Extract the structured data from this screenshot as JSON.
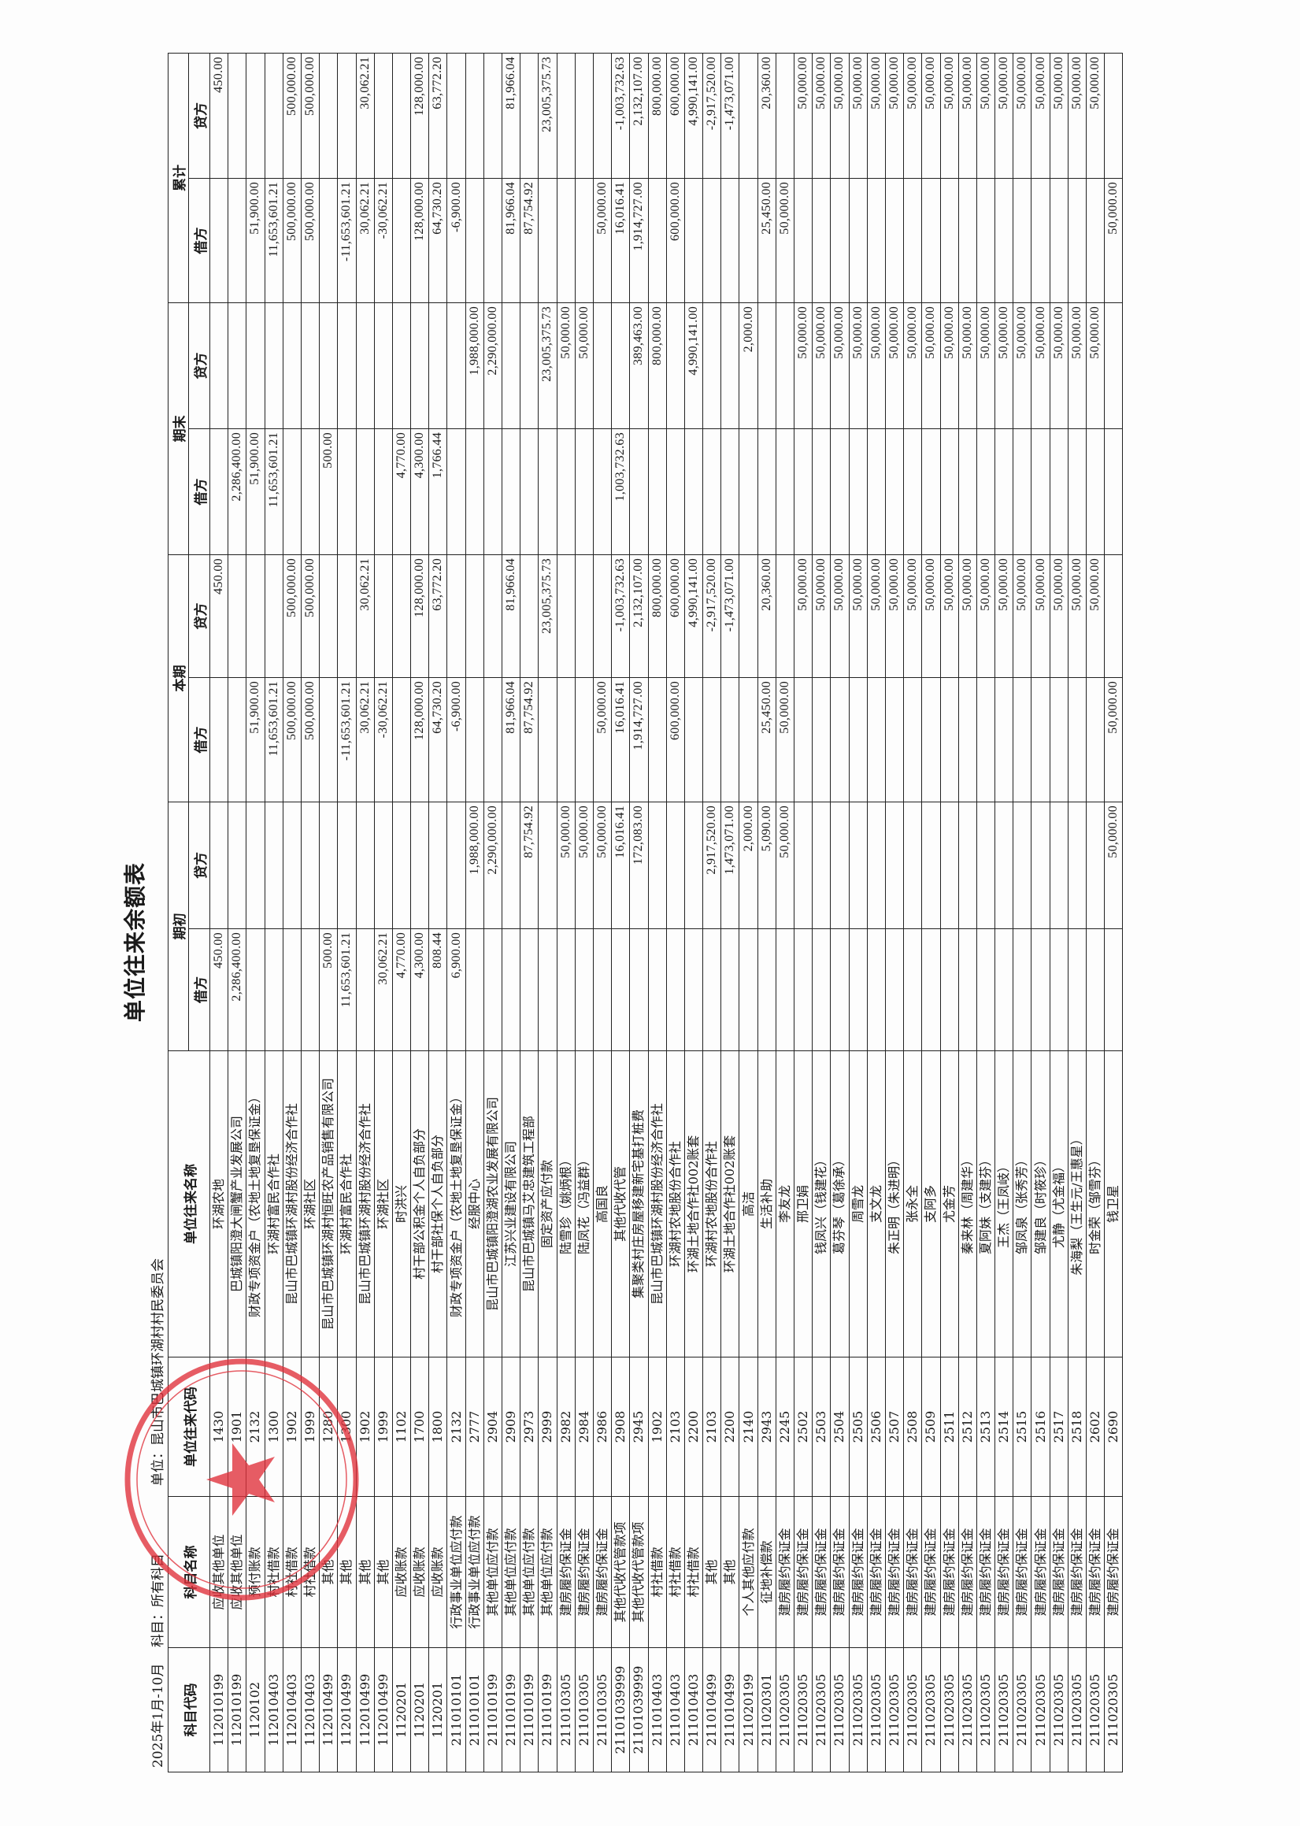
{
  "document": {
    "title": "单位往来余额表",
    "period": "2025年1月-10月",
    "subject": "科目：所有科目",
    "unit": "单位：昆山市巴城镇环湖村村民委员会"
  },
  "stamp": {
    "text": "昆山市巴城镇环湖村村民委员会",
    "color": "#e0303a",
    "icon": "star-icon"
  },
  "table": {
    "headers": {
      "subject_code": "科目代码",
      "subject_name": "科目名称",
      "unit_code": "单位往来代码",
      "unit_name": "单位往来名称",
      "opening": "期初",
      "current": "本期",
      "closing": "期末",
      "cumulative": "累计",
      "debit": "借方",
      "credit": "贷方"
    },
    "rows": [
      [
        "112010199",
        "应收其他单位",
        "1430",
        "环湖农地",
        "450.00",
        "",
        "",
        "450.00",
        "",
        "",
        "",
        "450.00"
      ],
      [
        "112010199",
        "应收其他单位",
        "1901",
        "巴城镇阳澄大闸蟹产业发展公司",
        "2,286,400.00",
        "",
        "",
        "",
        "2,286,400.00",
        "",
        "",
        ""
      ],
      [
        "1120102",
        "预付账款",
        "2132",
        "财政专项资金户（农地土地复垦保证金）",
        "",
        "",
        "51,900.00",
        "",
        "51,900.00",
        "",
        "51,900.00",
        ""
      ],
      [
        "112010403",
        "村社借款",
        "1300",
        "环湖村富民合作社",
        "",
        "",
        "11,653,601.21",
        "",
        "11,653,601.21",
        "",
        "11,653,601.21",
        ""
      ],
      [
        "112010403",
        "村社借款",
        "1902",
        "昆山市巴城镇环湖村股份经济合作社",
        "",
        "",
        "500,000.00",
        "500,000.00",
        "",
        "",
        "500,000.00",
        "500,000.00"
      ],
      [
        "112010403",
        "村社借款",
        "1999",
        "环湖社区",
        "",
        "",
        "500,000.00",
        "500,000.00",
        "",
        "",
        "500,000.00",
        "500,000.00"
      ],
      [
        "112010499",
        "其他",
        "1280",
        "昆山市巴城镇环湖村恒旺农产品销售有限公司",
        "500.00",
        "",
        "",
        "",
        "500.00",
        "",
        "",
        ""
      ],
      [
        "112010499",
        "其他",
        "1300",
        "环湖村富民合作社",
        "11,653,601.21",
        "",
        "-11,653,601.21",
        "",
        "",
        "",
        "-11,653,601.21",
        ""
      ],
      [
        "112010499",
        "其他",
        "1902",
        "昆山市巴城镇环湖村股份经济合作社",
        "",
        "",
        "30,062.21",
        "30,062.21",
        "",
        "",
        "30,062.21",
        "30,062.21"
      ],
      [
        "112010499",
        "其他",
        "1999",
        "环湖社区",
        "30,062.21",
        "",
        "-30,062.21",
        "",
        "",
        "",
        "-30,062.21",
        ""
      ],
      [
        "1120201",
        "应收账款",
        "1102",
        "时洪兴",
        "4,770.00",
        "",
        "",
        "",
        "4,770.00",
        "",
        "",
        ""
      ],
      [
        "1120201",
        "应收账款",
        "1700",
        "村干部公积金个人自负部分",
        "4,300.00",
        "",
        "128,000.00",
        "128,000.00",
        "4,300.00",
        "",
        "128,000.00",
        "128,000.00"
      ],
      [
        "1120201",
        "应收账款",
        "1800",
        "村干部社保个人自负部分",
        "808.44",
        "",
        "64,730.20",
        "63,772.20",
        "1,766.44",
        "",
        "64,730.20",
        "63,772.20"
      ],
      [
        "211010101",
        "行政事业单位应付款",
        "2132",
        "财政专项资金户（农地土地复垦保证金）",
        "6,900.00",
        "",
        "-6,900.00",
        "",
        "",
        "",
        "-6,900.00",
        ""
      ],
      [
        "211010101",
        "行政事业单位应付款",
        "2777",
        "经服中心",
        "",
        "1,988,000.00",
        "",
        "",
        "",
        "1,988,000.00",
        "",
        ""
      ],
      [
        "211010199",
        "其他单位应付款",
        "2904",
        "昆山市巴城镇阳澄湖农业发展有限公司",
        "",
        "2,290,000.00",
        "",
        "",
        "",
        "2,290,000.00",
        "",
        ""
      ],
      [
        "211010199",
        "其他单位应付款",
        "2909",
        "江苏兴业建设有限公司",
        "",
        "",
        "81,966.04",
        "81,966.04",
        "",
        "",
        "81,966.04",
        "81,966.04"
      ],
      [
        "211010199",
        "其他单位应付款",
        "2973",
        "昆山市巴城镇马艾忠建筑工程部",
        "",
        "87,754.92",
        "87,754.92",
        "",
        "",
        "",
        "87,754.92",
        ""
      ],
      [
        "211010199",
        "其他单位应付款",
        "2999",
        "固定资产应付款",
        "",
        "",
        "",
        "23,005,375.73",
        "",
        "23,005,375.73",
        "",
        "23,005,375.73"
      ],
      [
        "211010305",
        "建房履约保证金",
        "2982",
        "陆雪珍（姚炳根）",
        "",
        "50,000.00",
        "",
        "",
        "",
        "50,000.00",
        "",
        ""
      ],
      [
        "211010305",
        "建房履约保证金",
        "2984",
        "陆凤花（冯益群）",
        "",
        "50,000.00",
        "",
        "",
        "",
        "50,000.00",
        "",
        ""
      ],
      [
        "211010305",
        "建房履约保证金",
        "2986",
        "高国良",
        "",
        "50,000.00",
        "50,000.00",
        "",
        "",
        "",
        "50,000.00",
        ""
      ],
      [
        "21101039999",
        "其他代收代管款项",
        "2908",
        "其他代收代管",
        "",
        "16,016.41",
        "16,016.41",
        "-1,003,732.63",
        "1,003,732.63",
        "",
        "16,016.41",
        "-1,003,732.63"
      ],
      [
        "21101039999",
        "其他代收代管款项",
        "2945",
        "集聚类村庄房屋移建新宅基打桩费",
        "",
        "172,083.00",
        "1,914,727.00",
        "2,132,107.00",
        "",
        "389,463.00",
        "1,914,727.00",
        "2,132,107.00"
      ],
      [
        "211010403",
        "村社借款",
        "1902",
        "昆山市巴城镇环湖村股份经济合作社",
        "",
        "",
        "",
        "800,000.00",
        "",
        "800,000.00",
        "",
        "800,000.00"
      ],
      [
        "211010403",
        "村社借款",
        "2103",
        "环湖村农地股份合作社",
        "",
        "",
        "600,000.00",
        "600,000.00",
        "",
        "",
        "600,000.00",
        "600,000.00"
      ],
      [
        "211010403",
        "村社借款",
        "2200",
        "环湖土地合作社002账套",
        "",
        "",
        "",
        "4,990,141.00",
        "",
        "4,990,141.00",
        "",
        "4,990,141.00"
      ],
      [
        "211010499",
        "其他",
        "2103",
        "环湖村农地股份合作社",
        "",
        "2,917,520.00",
        "",
        "-2,917,520.00",
        "",
        "",
        "",
        "-2,917,520.00"
      ],
      [
        "211010499",
        "其他",
        "2200",
        "环湖土地合作社002账套",
        "",
        "1,473,071.00",
        "",
        "-1,473,071.00",
        "",
        "",
        "",
        "-1,473,071.00"
      ],
      [
        "211020199",
        "个人其他应付款",
        "2140",
        "高洁",
        "",
        "2,000.00",
        "",
        "",
        "",
        "2,000.00",
        "",
        ""
      ],
      [
        "211020301",
        "征地补偿款",
        "2943",
        "生活补助",
        "",
        "5,090.00",
        "25,450.00",
        "20,360.00",
        "",
        "",
        "25,450.00",
        "20,360.00"
      ],
      [
        "211020305",
        "建房履约保证金",
        "2245",
        "李友龙",
        "",
        "50,000.00",
        "50,000.00",
        "",
        "",
        "",
        "50,000.00",
        ""
      ],
      [
        "211020305",
        "建房履约保证金",
        "2502",
        "邢卫娟",
        "",
        "",
        "",
        "50,000.00",
        "",
        "50,000.00",
        "",
        "50,000.00"
      ],
      [
        "211020305",
        "建房履约保证金",
        "2503",
        "钱凤兴（钱建花）",
        "",
        "",
        "",
        "50,000.00",
        "",
        "50,000.00",
        "",
        "50,000.00"
      ],
      [
        "211020305",
        "建房履约保证金",
        "2504",
        "葛芬琴（葛徐承）",
        "",
        "",
        "",
        "50,000.00",
        "",
        "50,000.00",
        "",
        "50,000.00"
      ],
      [
        "211020305",
        "建房履约保证金",
        "2505",
        "周雪龙",
        "",
        "",
        "",
        "50,000.00",
        "",
        "50,000.00",
        "",
        "50,000.00"
      ],
      [
        "211020305",
        "建房履约保证金",
        "2506",
        "支文龙",
        "",
        "",
        "",
        "50,000.00",
        "",
        "50,000.00",
        "",
        "50,000.00"
      ],
      [
        "211020305",
        "建房履约保证金",
        "2507",
        "朱正明（朱进明）",
        "",
        "",
        "",
        "50,000.00",
        "",
        "50,000.00",
        "",
        "50,000.00"
      ],
      [
        "211020305",
        "建房履约保证金",
        "2508",
        "张永全",
        "",
        "",
        "",
        "50,000.00",
        "",
        "50,000.00",
        "",
        "50,000.00"
      ],
      [
        "211020305",
        "建房履约保证金",
        "2509",
        "支阿多",
        "",
        "",
        "",
        "50,000.00",
        "",
        "50,000.00",
        "",
        "50,000.00"
      ],
      [
        "211020305",
        "建房履约保证金",
        "2511",
        "尤金芳",
        "",
        "",
        "",
        "50,000.00",
        "",
        "50,000.00",
        "",
        "50,000.00"
      ],
      [
        "211020305",
        "建房履约保证金",
        "2512",
        "秦来林（周建华）",
        "",
        "",
        "",
        "50,000.00",
        "",
        "50,000.00",
        "",
        "50,000.00"
      ],
      [
        "211020305",
        "建房履约保证金",
        "2513",
        "夏阿妹（支建芬）",
        "",
        "",
        "",
        "50,000.00",
        "",
        "50,000.00",
        "",
        "50,000.00"
      ],
      [
        "211020305",
        "建房履约保证金",
        "2514",
        "王杰（王凤岐）",
        "",
        "",
        "",
        "50,000.00",
        "",
        "50,000.00",
        "",
        "50,000.00"
      ],
      [
        "211020305",
        "建房履约保证金",
        "2515",
        "邹凤泉（张秀芳）",
        "",
        "",
        "",
        "50,000.00",
        "",
        "50,000.00",
        "",
        "50,000.00"
      ],
      [
        "211020305",
        "建房履约保证金",
        "2516",
        "邹建良（时筱珍）",
        "",
        "",
        "",
        "50,000.00",
        "",
        "50,000.00",
        "",
        "50,000.00"
      ],
      [
        "211020305",
        "建房履约保证金",
        "2517",
        "尤静（尤金福）",
        "",
        "",
        "",
        "50,000.00",
        "",
        "50,000.00",
        "",
        "50,000.00"
      ],
      [
        "211020305",
        "建房履约保证金",
        "2518",
        "朱海梨（王生元/王惠星）",
        "",
        "",
        "",
        "50,000.00",
        "",
        "50,000.00",
        "",
        "50,000.00"
      ],
      [
        "211020305",
        "建房履约保证金",
        "2602",
        "时金荣（邹雪芬）",
        "",
        "",
        "",
        "50,000.00",
        "",
        "50,000.00",
        "",
        "50,000.00"
      ],
      [
        "211020305",
        "建房履约保证金",
        "2690",
        "钱卫星",
        "",
        "50,000.00",
        "50,000.00",
        "",
        "",
        "",
        "50,000.00",
        ""
      ]
    ]
  }
}
